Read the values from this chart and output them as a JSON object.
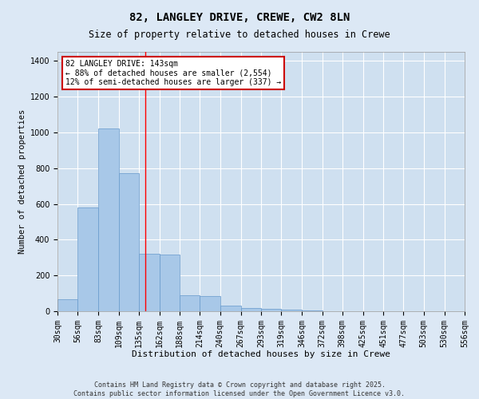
{
  "title": "82, LANGLEY DRIVE, CREWE, CW2 8LN",
  "subtitle": "Size of property relative to detached houses in Crewe",
  "xlabel": "Distribution of detached houses by size in Crewe",
  "ylabel": "Number of detached properties",
  "fig_facecolor": "#dce8f5",
  "ax_facecolor": "#cfe0f0",
  "bar_color": "#a8c8e8",
  "bar_edge_color": "#6699cc",
  "grid_color": "#ffffff",
  "red_line_x": 143,
  "annotation_text": "82 LANGLEY DRIVE: 143sqm\n← 88% of detached houses are smaller (2,554)\n12% of semi-detached houses are larger (337) →",
  "annotation_box_facecolor": "#ffffff",
  "annotation_box_edge": "#cc0000",
  "footer_text": "Contains HM Land Registry data © Crown copyright and database right 2025.\nContains public sector information licensed under the Open Government Licence v3.0.",
  "bin_edges": [
    30,
    56,
    83,
    109,
    135,
    162,
    188,
    214,
    240,
    267,
    293,
    319,
    346,
    372,
    398,
    425,
    451,
    477,
    503,
    530,
    556
  ],
  "bin_counts": [
    65,
    580,
    1020,
    770,
    320,
    315,
    90,
    85,
    30,
    20,
    15,
    10,
    5,
    0,
    0,
    0,
    0,
    0,
    0,
    0
  ],
  "ylim": [
    0,
    1450
  ],
  "yticks": [
    0,
    200,
    400,
    600,
    800,
    1000,
    1200,
    1400
  ],
  "figsize": [
    6.0,
    5.0
  ],
  "dpi": 100,
  "title_fontsize": 10,
  "subtitle_fontsize": 8.5,
  "xlabel_fontsize": 8,
  "ylabel_fontsize": 7.5,
  "tick_fontsize": 7,
  "annotation_fontsize": 7,
  "footer_fontsize": 6
}
